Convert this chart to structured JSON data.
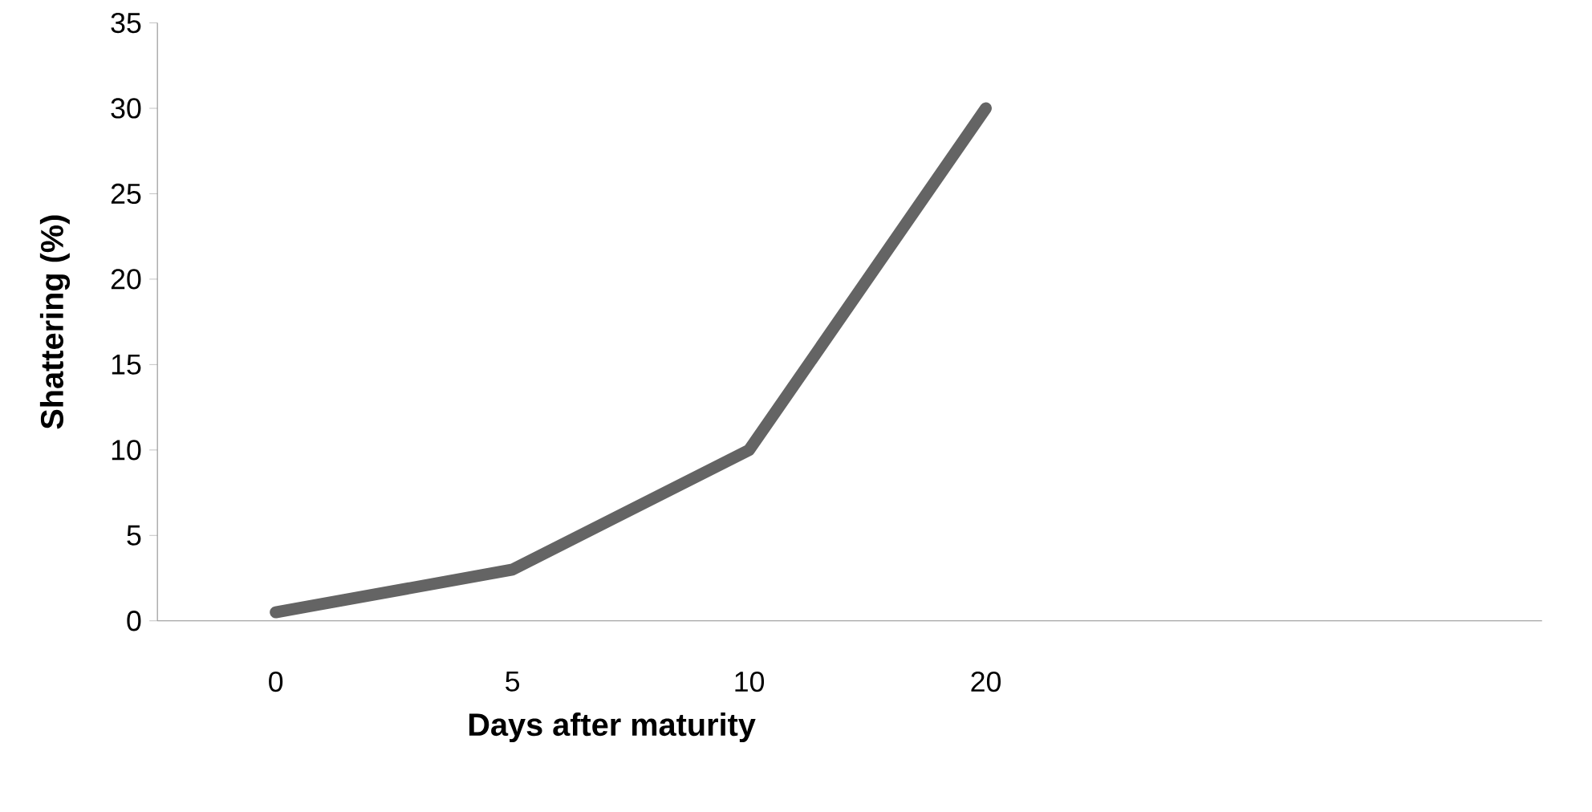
{
  "chart_data": {
    "type": "line",
    "xlabel": "Days after maturity",
    "ylabel": "Shattering (%)",
    "categories": [
      "0",
      "5",
      "10",
      "20"
    ],
    "series": [
      {
        "color": "#646464",
        "values": [
          0.5,
          3,
          10,
          30
        ]
      }
    ],
    "ylim": [
      0,
      35
    ],
    "yticks": [
      0,
      5,
      10,
      15,
      20,
      25,
      30,
      35
    ],
    "grid": false,
    "marker": "none",
    "line_style": "solid"
  }
}
